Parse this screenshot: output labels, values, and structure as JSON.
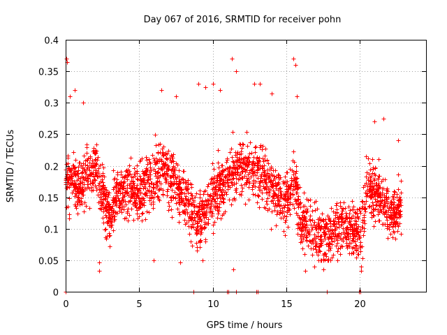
{
  "chart_data": {
    "type": "scatter",
    "title": "Day 067 of 2016, SRMTID for receiver pohn",
    "xlabel": "GPS time / hours",
    "ylabel": "SRMTID / TECUs",
    "xlim": [
      0,
      24.5
    ],
    "ylim": [
      0,
      0.4
    ],
    "x_ticks": [
      0,
      5,
      10,
      15,
      20
    ],
    "x_tick_labels": [
      "0",
      "5",
      "10",
      "15",
      "20"
    ],
    "y_ticks": [
      0,
      0.05,
      0.1,
      0.15,
      0.2,
      0.25,
      0.3,
      0.35,
      0.4
    ],
    "y_tick_labels": [
      "0",
      "0.05",
      "0.1",
      "0.15",
      "0.2",
      "0.25",
      "0.3",
      "0.35",
      "0.4"
    ],
    "grid": true,
    "marker": "plus",
    "color": "#ff0000",
    "series": [
      {
        "name": "SRMTID",
        "trend": [
          [
            0.0,
            0.18
          ],
          [
            1.0,
            0.17
          ],
          [
            2.0,
            0.2
          ],
          [
            3.0,
            0.12
          ],
          [
            3.5,
            0.16
          ],
          [
            5.0,
            0.16
          ],
          [
            6.5,
            0.2
          ],
          [
            8.0,
            0.15
          ],
          [
            9.0,
            0.11
          ],
          [
            10.5,
            0.17
          ],
          [
            12.0,
            0.2
          ],
          [
            13.5,
            0.18
          ],
          [
            15.0,
            0.14
          ],
          [
            15.5,
            0.18
          ],
          [
            16.0,
            0.11
          ],
          [
            17.0,
            0.09
          ],
          [
            18.0,
            0.09
          ],
          [
            19.0,
            0.11
          ],
          [
            20.0,
            0.09
          ],
          [
            20.5,
            0.17
          ],
          [
            21.5,
            0.15
          ],
          [
            22.0,
            0.12
          ],
          [
            22.8,
            0.14
          ]
        ],
        "spread": 0.045,
        "x_range": [
          0.0,
          22.8
        ],
        "point_count": 2600,
        "zero_points_x": [
          0.0,
          8.7,
          10.95,
          11.05,
          11.6,
          12.95,
          13.05,
          17.75,
          19.95,
          20.05
        ],
        "points": [
          [
            0.05,
            0.37
          ],
          [
            0.1,
            0.365
          ],
          [
            0.3,
            0.31
          ],
          [
            0.6,
            0.32
          ],
          [
            1.2,
            0.3
          ],
          [
            6.5,
            0.32
          ],
          [
            7.5,
            0.31
          ],
          [
            9.0,
            0.33
          ],
          [
            9.5,
            0.325
          ],
          [
            10.0,
            0.33
          ],
          [
            10.5,
            0.32
          ],
          [
            11.3,
            0.37
          ],
          [
            11.6,
            0.35
          ],
          [
            12.8,
            0.33
          ],
          [
            13.2,
            0.33
          ],
          [
            14.0,
            0.315
          ],
          [
            15.5,
            0.37
          ],
          [
            15.6,
            0.36
          ],
          [
            15.7,
            0.31
          ],
          [
            21.0,
            0.27
          ],
          [
            21.6,
            0.275
          ],
          [
            22.6,
            0.24
          ],
          [
            11.4,
            0.035
          ],
          [
            2.3,
            0.033
          ],
          [
            2.3,
            0.047
          ],
          [
            16.3,
            0.033
          ],
          [
            16.9,
            0.04
          ],
          [
            17.5,
            0.035
          ],
          [
            20.1,
            0.033
          ],
          [
            20.1,
            0.04
          ],
          [
            6.0,
            0.05
          ],
          [
            9.3,
            0.05
          ],
          [
            7.8,
            0.046
          ]
        ]
      }
    ]
  }
}
